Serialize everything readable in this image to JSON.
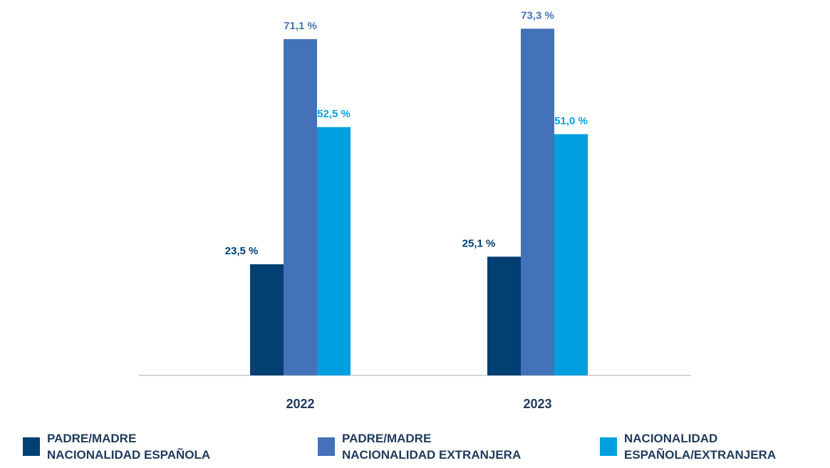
{
  "chart_data": {
    "type": "bar",
    "categories": [
      "2022",
      "2023"
    ],
    "series": [
      {
        "name": "PADRE/MADRE\nNACIONALIDAD ESPAÑOLA",
        "color": "#023f73",
        "values": [
          23.5,
          25.1
        ],
        "value_labels": [
          "23,5 %",
          "25,1 %"
        ]
      },
      {
        "name": "PADRE/MADRE\nNACIONALIDAD EXTRANJERA",
        "color": "#4472b8",
        "values": [
          71.1,
          73.3
        ],
        "value_labels": [
          "71,1 %",
          "73,3 %"
        ]
      },
      {
        "name": "NACIONALIDAD\nESPAÑOLA/EXTRANJERA",
        "color": "#00a0e0",
        "values": [
          52.5,
          51.0
        ],
        "value_labels": [
          "52,5 %",
          "51,0 %"
        ]
      }
    ]
  }
}
